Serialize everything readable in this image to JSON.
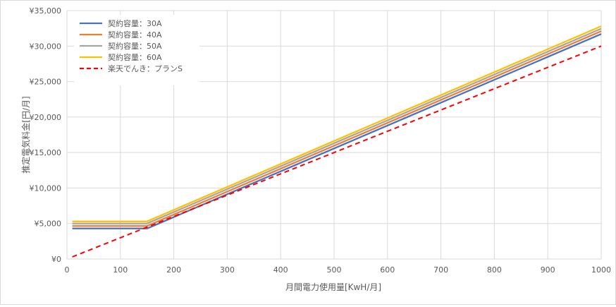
{
  "chart_data": {
    "type": "line",
    "title": "",
    "xlabel": "月間電力使用量[KwH/月]",
    "ylabel": "推定電気料金[円/月]",
    "xlim": [
      0,
      1000
    ],
    "ylim": [
      0,
      35000
    ],
    "x_ticks": [
      "0",
      "100",
      "200",
      "300",
      "400",
      "500",
      "600",
      "700",
      "800",
      "900",
      "1000"
    ],
    "y_ticks": [
      "¥0",
      "¥5,000",
      "¥10,000",
      "¥15,000",
      "¥20,000",
      "¥25,000",
      "¥30,000",
      "¥35,000"
    ],
    "x_tick_values": [
      0,
      100,
      200,
      300,
      400,
      500,
      600,
      700,
      800,
      900,
      1000
    ],
    "y_tick_values": [
      0,
      5000,
      10000,
      15000,
      20000,
      25000,
      30000,
      35000
    ],
    "grid": true,
    "legend_position": "top-left",
    "series": [
      {
        "name": "契約容量：30A",
        "color": "#4472c4",
        "dash": "solid",
        "x": [
          10,
          150,
          1000
        ],
        "y": [
          4300,
          4300,
          31700
        ]
      },
      {
        "name": "契約容量：40A",
        "color": "#ed7d31",
        "dash": "solid",
        "x": [
          10,
          150,
          1000
        ],
        "y": [
          4650,
          4650,
          32100
        ]
      },
      {
        "name": "契約容量：50A",
        "color": "#a5a5a5",
        "dash": "solid",
        "x": [
          10,
          150,
          1000
        ],
        "y": [
          5000,
          5000,
          32450
        ]
      },
      {
        "name": "契約容量：60A",
        "color": "#ffc000",
        "dash": "solid",
        "x": [
          10,
          150,
          1000
        ],
        "y": [
          5300,
          5300,
          32800
        ]
      },
      {
        "name": "楽天でんき：プランS",
        "color": "#ff0000",
        "dash": "dashed",
        "x": [
          10,
          1000
        ],
        "y": [
          300,
          30000
        ]
      }
    ]
  }
}
